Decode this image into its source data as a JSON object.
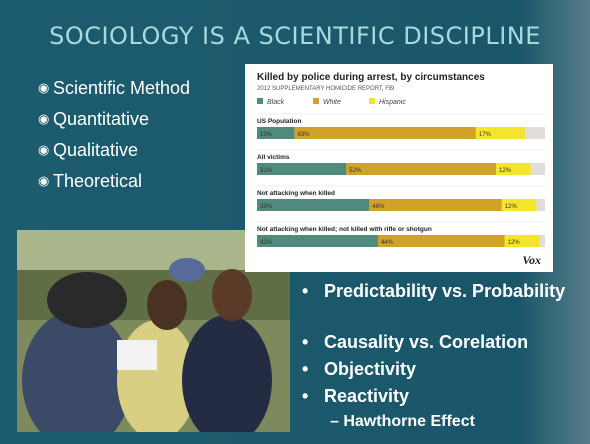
{
  "slide": {
    "title": "SOCIOLOGY IS A SCIENTIFIC DISCIPLINE",
    "left_bullets": [
      "Scientific Method",
      "Quantitative",
      "Qualitative",
      "Theoretical"
    ],
    "right_bullets": [
      "Predictability vs. Probability",
      "Causality vs. Corelation",
      "Objectivity",
      "Reactivity"
    ],
    "sub_bullet": "Hawthorne Effect",
    "chart": {
      "title": "Killed by police during arrest, by circumstances",
      "subtitle": "2012 SUPPLEMENTARY HOMICIDE REPORT, FBI",
      "xlim": [
        0,
        100
      ],
      "series": [
        {
          "name": "Black",
          "color": "#4f8a7c"
        },
        {
          "name": "White",
          "color": "#d2a12a"
        },
        {
          "name": "Hispanic",
          "color": "#f5e52a"
        }
      ],
      "rows": [
        {
          "label": "US Population",
          "values": [
            13,
            63,
            17
          ],
          "value_labels": [
            "13%",
            "63%",
            "17%"
          ]
        },
        {
          "label": "All victims",
          "values": [
            31,
            52,
            12
          ],
          "value_labels": [
            "31%",
            "52%",
            "12%"
          ]
        },
        {
          "label": "Not attacking when killed",
          "values": [
            39,
            46,
            12
          ],
          "value_labels": [
            "39%",
            "46%",
            "12%"
          ]
        },
        {
          "label": "Not attacking when killed; not killed with rifle or shotgun",
          "values": [
            42,
            44,
            12
          ],
          "value_labels": [
            "42%",
            "44%",
            "12%"
          ]
        }
      ],
      "brand": "Vox"
    }
  }
}
